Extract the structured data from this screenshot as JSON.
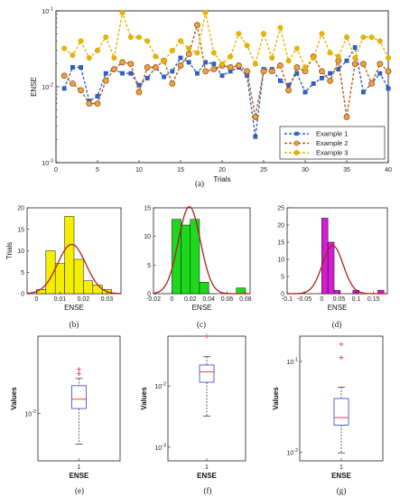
{
  "chart_data": [
    {
      "id": "a",
      "type": "line",
      "caption": "(a)",
      "xlabel": "Trials",
      "ylabel": "ENSE",
      "xlim": [
        0,
        40
      ],
      "ylim": [
        0.001,
        0.1
      ],
      "yscale": "log",
      "xticks": [
        0,
        5,
        10,
        15,
        20,
        25,
        30,
        35,
        40
      ],
      "yticks": [
        {
          "value": 0.001,
          "label": "10",
          "exp": "-3"
        },
        {
          "value": 0.01,
          "label": "10",
          "exp": "-2"
        },
        {
          "value": 0.1,
          "label": "10",
          "exp": "-1"
        }
      ],
      "legend_position": "bottom-right",
      "x": [
        1,
        2,
        3,
        4,
        5,
        6,
        7,
        8,
        9,
        10,
        11,
        12,
        13,
        14,
        15,
        16,
        17,
        18,
        19,
        20,
        21,
        22,
        23,
        24,
        25,
        26,
        27,
        28,
        29,
        30,
        31,
        32,
        33,
        34,
        35,
        36,
        37,
        38,
        39,
        40
      ],
      "series": [
        {
          "name": "Example 1",
          "color": "#2f62c4",
          "marker": "square",
          "values": [
            0.0095,
            0.018,
            0.018,
            0.0065,
            0.0075,
            0.015,
            0.017,
            0.015,
            0.015,
            0.0105,
            0.013,
            0.018,
            0.0135,
            0.016,
            0.024,
            0.021,
            0.015,
            0.021,
            0.02,
            0.014,
            0.016,
            0.018,
            0.014,
            0.0022,
            0.017,
            0.017,
            0.012,
            0.0105,
            0.015,
            0.0085,
            0.011,
            0.013,
            0.015,
            0.017,
            0.022,
            0.033,
            0.0085,
            0.011,
            0.015,
            0.0095
          ]
        },
        {
          "name": "Example 2",
          "color": "#b85a1a",
          "marker": "circle",
          "values": [
            0.014,
            0.011,
            0.009,
            0.006,
            0.006,
            0.012,
            0.017,
            0.021,
            0.02,
            0.0085,
            0.018,
            0.018,
            0.022,
            0.011,
            0.019,
            0.027,
            0.065,
            0.016,
            0.017,
            0.019,
            0.018,
            0.019,
            0.016,
            0.004,
            0.016,
            0.016,
            0.019,
            0.009,
            0.018,
            0.016,
            0.025,
            0.016,
            0.012,
            0.022,
            0.004,
            0.02,
            0.02,
            0.011,
            0.02,
            0.016
          ]
        },
        {
          "name": "Example 3",
          "color": "#e6b400",
          "marker": "circle",
          "values": [
            0.032,
            0.026,
            0.04,
            0.024,
            0.03,
            0.045,
            0.024,
            0.095,
            0.045,
            0.045,
            0.04,
            0.025,
            0.022,
            0.03,
            0.04,
            0.032,
            0.028,
            0.095,
            0.028,
            0.02,
            0.025,
            0.05,
            0.035,
            0.02,
            0.05,
            0.024,
            0.06,
            0.022,
            0.032,
            0.018,
            0.024,
            0.05,
            0.028,
            0.025,
            0.045,
            0.024,
            0.045,
            0.045,
            0.04,
            0.024
          ]
        }
      ]
    },
    {
      "id": "b",
      "type": "bar",
      "caption": "(b)",
      "xlabel": "ENSE",
      "ylabel": "Trials",
      "xlim": [
        -0.004,
        0.036
      ],
      "ylim": [
        0,
        20
      ],
      "xticks": [
        0,
        0.01,
        0.02,
        0.03
      ],
      "yticks": [
        0,
        5,
        10,
        15,
        20
      ],
      "bar_color": "#f5ee00",
      "bin_edges": [
        0.0,
        0.004,
        0.008,
        0.012,
        0.016,
        0.02,
        0.024,
        0.028,
        0.032
      ],
      "counts": [
        1,
        10,
        7,
        18,
        8,
        3,
        2,
        1
      ],
      "fit": {
        "mean": 0.015,
        "sd": 0.006,
        "peak": 11.5,
        "color": "#b01e1e"
      }
    },
    {
      "id": "c",
      "type": "bar",
      "caption": "(c)",
      "xlabel": "ENSE",
      "ylabel": "",
      "xlim": [
        -0.02,
        0.085
      ],
      "ylim": [
        0,
        15
      ],
      "xticks": [
        -0.02,
        0,
        0.02,
        0.04,
        0.06,
        0.08
      ],
      "yticks": [
        0,
        5,
        10,
        15
      ],
      "bar_color": "#1ed81e",
      "bin_edges": [
        0.0,
        0.01,
        0.02,
        0.03,
        0.04,
        0.05,
        0.06,
        0.07,
        0.08
      ],
      "counts": [
        13,
        12,
        13,
        2,
        0,
        0,
        0,
        1
      ],
      "fit": {
        "mean": 0.019,
        "sd": 0.012,
        "peak": 15.2,
        "color": "#b01e1e"
      }
    },
    {
      "id": "d",
      "type": "bar",
      "caption": "(d)",
      "xlabel": "ENSE",
      "ylabel": "",
      "xlim": [
        -0.1,
        0.19
      ],
      "ylim": [
        0,
        25
      ],
      "xticks": [
        -0.1,
        -0.05,
        0,
        0.05,
        0.1,
        0.15
      ],
      "yticks": [
        0,
        5,
        10,
        15,
        20,
        25
      ],
      "bar_color": "#d21ed2",
      "bin_edges": [
        0.0,
        0.018,
        0.036,
        0.054,
        0.072,
        0.09,
        0.108,
        0.126,
        0.144,
        0.162,
        0.18
      ],
      "counts": [
        22,
        15,
        1,
        0,
        0,
        1,
        0,
        0,
        0,
        1
      ],
      "fit": {
        "mean": 0.032,
        "sd": 0.03,
        "peak": 14,
        "color": "#b01e1e"
      }
    },
    {
      "id": "e",
      "type": "box",
      "caption": "(e)",
      "ylabel": "Values",
      "xlabel": "ENSE",
      "category": "1",
      "yscale": "log",
      "ylim": [
        0.0026,
        0.09
      ],
      "yticks": [
        {
          "value": 0.01,
          "label": "10",
          "exp": "-2"
        }
      ],
      "box": {
        "whisker_low": 0.0042,
        "q1": 0.0115,
        "median": 0.015,
        "q3": 0.022,
        "whisker_high": 0.027,
        "outliers": [
          0.035,
          0.031
        ]
      }
    },
    {
      "id": "f",
      "type": "box",
      "caption": "(f)",
      "ylabel": "Values",
      "xlabel": "ENSE",
      "category": "1",
      "yscale": "log",
      "ylim": [
        0.0006,
        0.065
      ],
      "yticks": [
        {
          "value": 0.001,
          "label": "10",
          "exp": "-3"
        },
        {
          "value": 0.01,
          "label": "10",
          "exp": "-2"
        }
      ],
      "box": {
        "whisker_low": 0.0032,
        "q1": 0.0115,
        "median": 0.017,
        "q3": 0.022,
        "whisker_high": 0.03,
        "outliers": [
          0.065
        ]
      }
    },
    {
      "id": "g",
      "type": "box",
      "caption": "(g)",
      "ylabel": "Values",
      "xlabel": "ENSE",
      "category": "1",
      "yscale": "log",
      "ylim": [
        0.008,
        0.19
      ],
      "yticks": [
        {
          "value": 0.01,
          "label": "10",
          "exp": "-2"
        },
        {
          "value": 0.1,
          "label": "10",
          "exp": "-1"
        }
      ],
      "box": {
        "whisker_low": 0.0098,
        "q1": 0.0198,
        "median": 0.024,
        "q3": 0.039,
        "whisker_high": 0.052,
        "outliers": [
          0.155,
          0.11
        ]
      }
    }
  ]
}
